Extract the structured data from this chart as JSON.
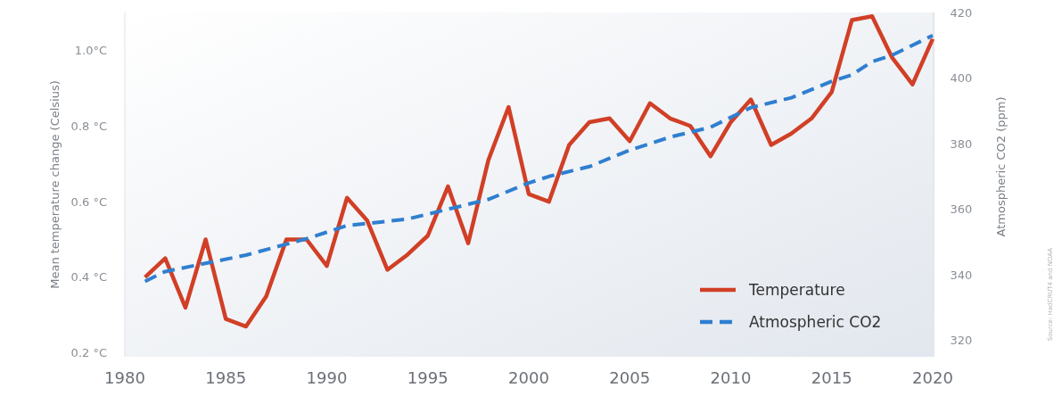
{
  "chart_data": {
    "type": "line",
    "ylabel": "Mean temperature change (Celsius)",
    "y2label": "Atmospheric CO2 (ppm)",
    "xlim": [
      1980,
      2020
    ],
    "xticks": [
      1980,
      1985,
      1990,
      1995,
      2000,
      2005,
      2010,
      2015,
      2020
    ],
    "ylim": [
      0.19,
      1.1
    ],
    "yticks": [
      {
        "value": 0.2,
        "label": "0.2 °C"
      },
      {
        "value": 0.4,
        "label": "0.4 °C"
      },
      {
        "value": 0.6,
        "label": "0.6 °C"
      },
      {
        "value": 0.8,
        "label": "0.8 °C"
      },
      {
        "value": 1.0,
        "label": "1.0°C"
      }
    ],
    "y2lim": [
      315,
      420
    ],
    "y2ticks": [
      320,
      340,
      360,
      380,
      400,
      420
    ],
    "legend": "bottom right",
    "series": [
      {
        "name": "Temperature",
        "color": "#d13f26",
        "line_style": "solid",
        "x": [
          1981,
          1982,
          1983,
          1984,
          1985,
          1986,
          1987,
          1988,
          1989,
          1990,
          1991,
          1992,
          1993,
          1994,
          1995,
          1996,
          1997,
          1998,
          1999,
          2000,
          2001,
          2002,
          2003,
          2004,
          2005,
          2006,
          2007,
          2008,
          2009,
          2010,
          2011,
          2012,
          2013,
          2014,
          2015,
          2016,
          2017,
          2018,
          2019,
          2020
        ],
        "values": [
          0.4,
          0.45,
          0.32,
          0.5,
          0.29,
          0.27,
          0.35,
          0.5,
          0.5,
          0.43,
          0.61,
          0.55,
          0.42,
          0.46,
          0.51,
          0.64,
          0.49,
          0.71,
          0.85,
          0.62,
          0.6,
          0.75,
          0.81,
          0.82,
          0.76,
          0.86,
          0.82,
          0.8,
          0.72,
          0.81,
          0.87,
          0.75,
          0.78,
          0.82,
          0.89,
          1.08,
          1.09,
          0.98,
          0.91,
          1.03
        ]
      },
      {
        "name": "Atmospheric CO2",
        "color": "#2f7fd0",
        "line_style": "dashed",
        "axis": "y2",
        "x": [
          1981,
          1982,
          1986,
          1989,
          1991,
          1994,
          1996,
          1998,
          2000,
          2001,
          2003,
          2005,
          2007,
          2009,
          2011,
          2013,
          2015,
          2016,
          2017,
          2018,
          2020
        ],
        "values": [
          338,
          341,
          346,
          351,
          355,
          357,
          360,
          363,
          368,
          370,
          373,
          378,
          382,
          385,
          391,
          394,
          399,
          401,
          405,
          407,
          413
        ]
      }
    ],
    "annotations": [
      "Source: HadCRUT4 and NOAA"
    ]
  }
}
